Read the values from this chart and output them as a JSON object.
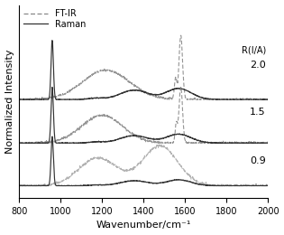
{
  "xmin": 800,
  "xmax": 2000,
  "xlabel": "Wavenumber/cm⁻¹",
  "ylabel": "Normalized Intensity",
  "xticks": [
    800,
    1000,
    1200,
    1400,
    1600,
    1800,
    2000
  ],
  "r_labels": [
    "2.0",
    "1.5",
    "0.9"
  ],
  "r_label_header": "R(I/A)",
  "offsets": [
    1.05,
    0.52,
    0.0
  ],
  "raman_color": "#333333",
  "ftir_color": "#888888",
  "ftir_color_09": "#aaaaaa"
}
